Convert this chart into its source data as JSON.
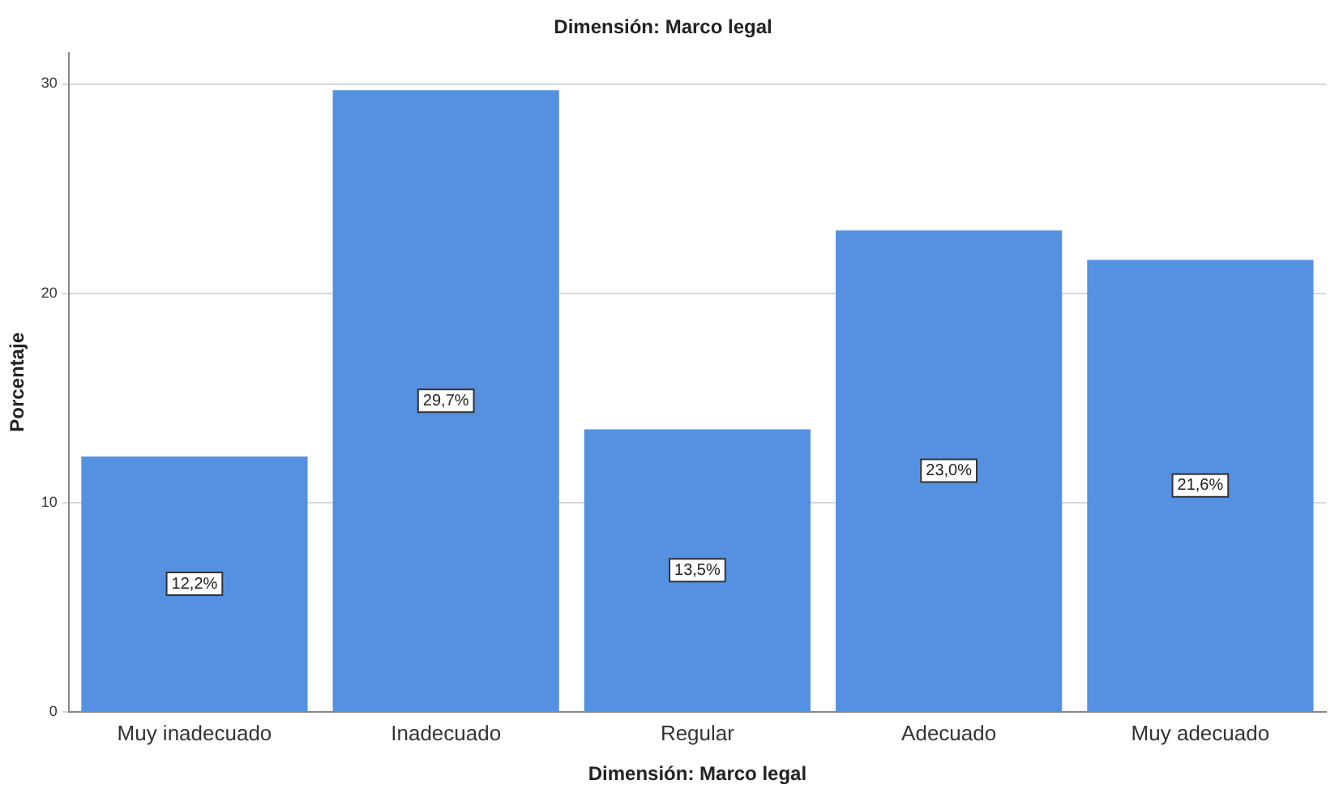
{
  "chart_data": {
    "type": "bar",
    "title": "Dimensión: Marco legal",
    "xlabel": "Dimensión: Marco legal",
    "ylabel": "Porcentaje",
    "categories": [
      "Muy inadecuado",
      "Inadecuado",
      "Regular",
      "Adecuado",
      "Muy adecuado"
    ],
    "values": [
      12.2,
      29.7,
      13.5,
      23.0,
      21.6
    ],
    "value_labels": [
      "12,2%",
      "29,7%",
      "13,5%",
      "23,0%",
      "21,6%"
    ],
    "color": "#5591e0",
    "ylim": [
      0,
      31.5
    ],
    "yticks": [
      0,
      10,
      20,
      30
    ],
    "grid": "y",
    "legend": false
  }
}
